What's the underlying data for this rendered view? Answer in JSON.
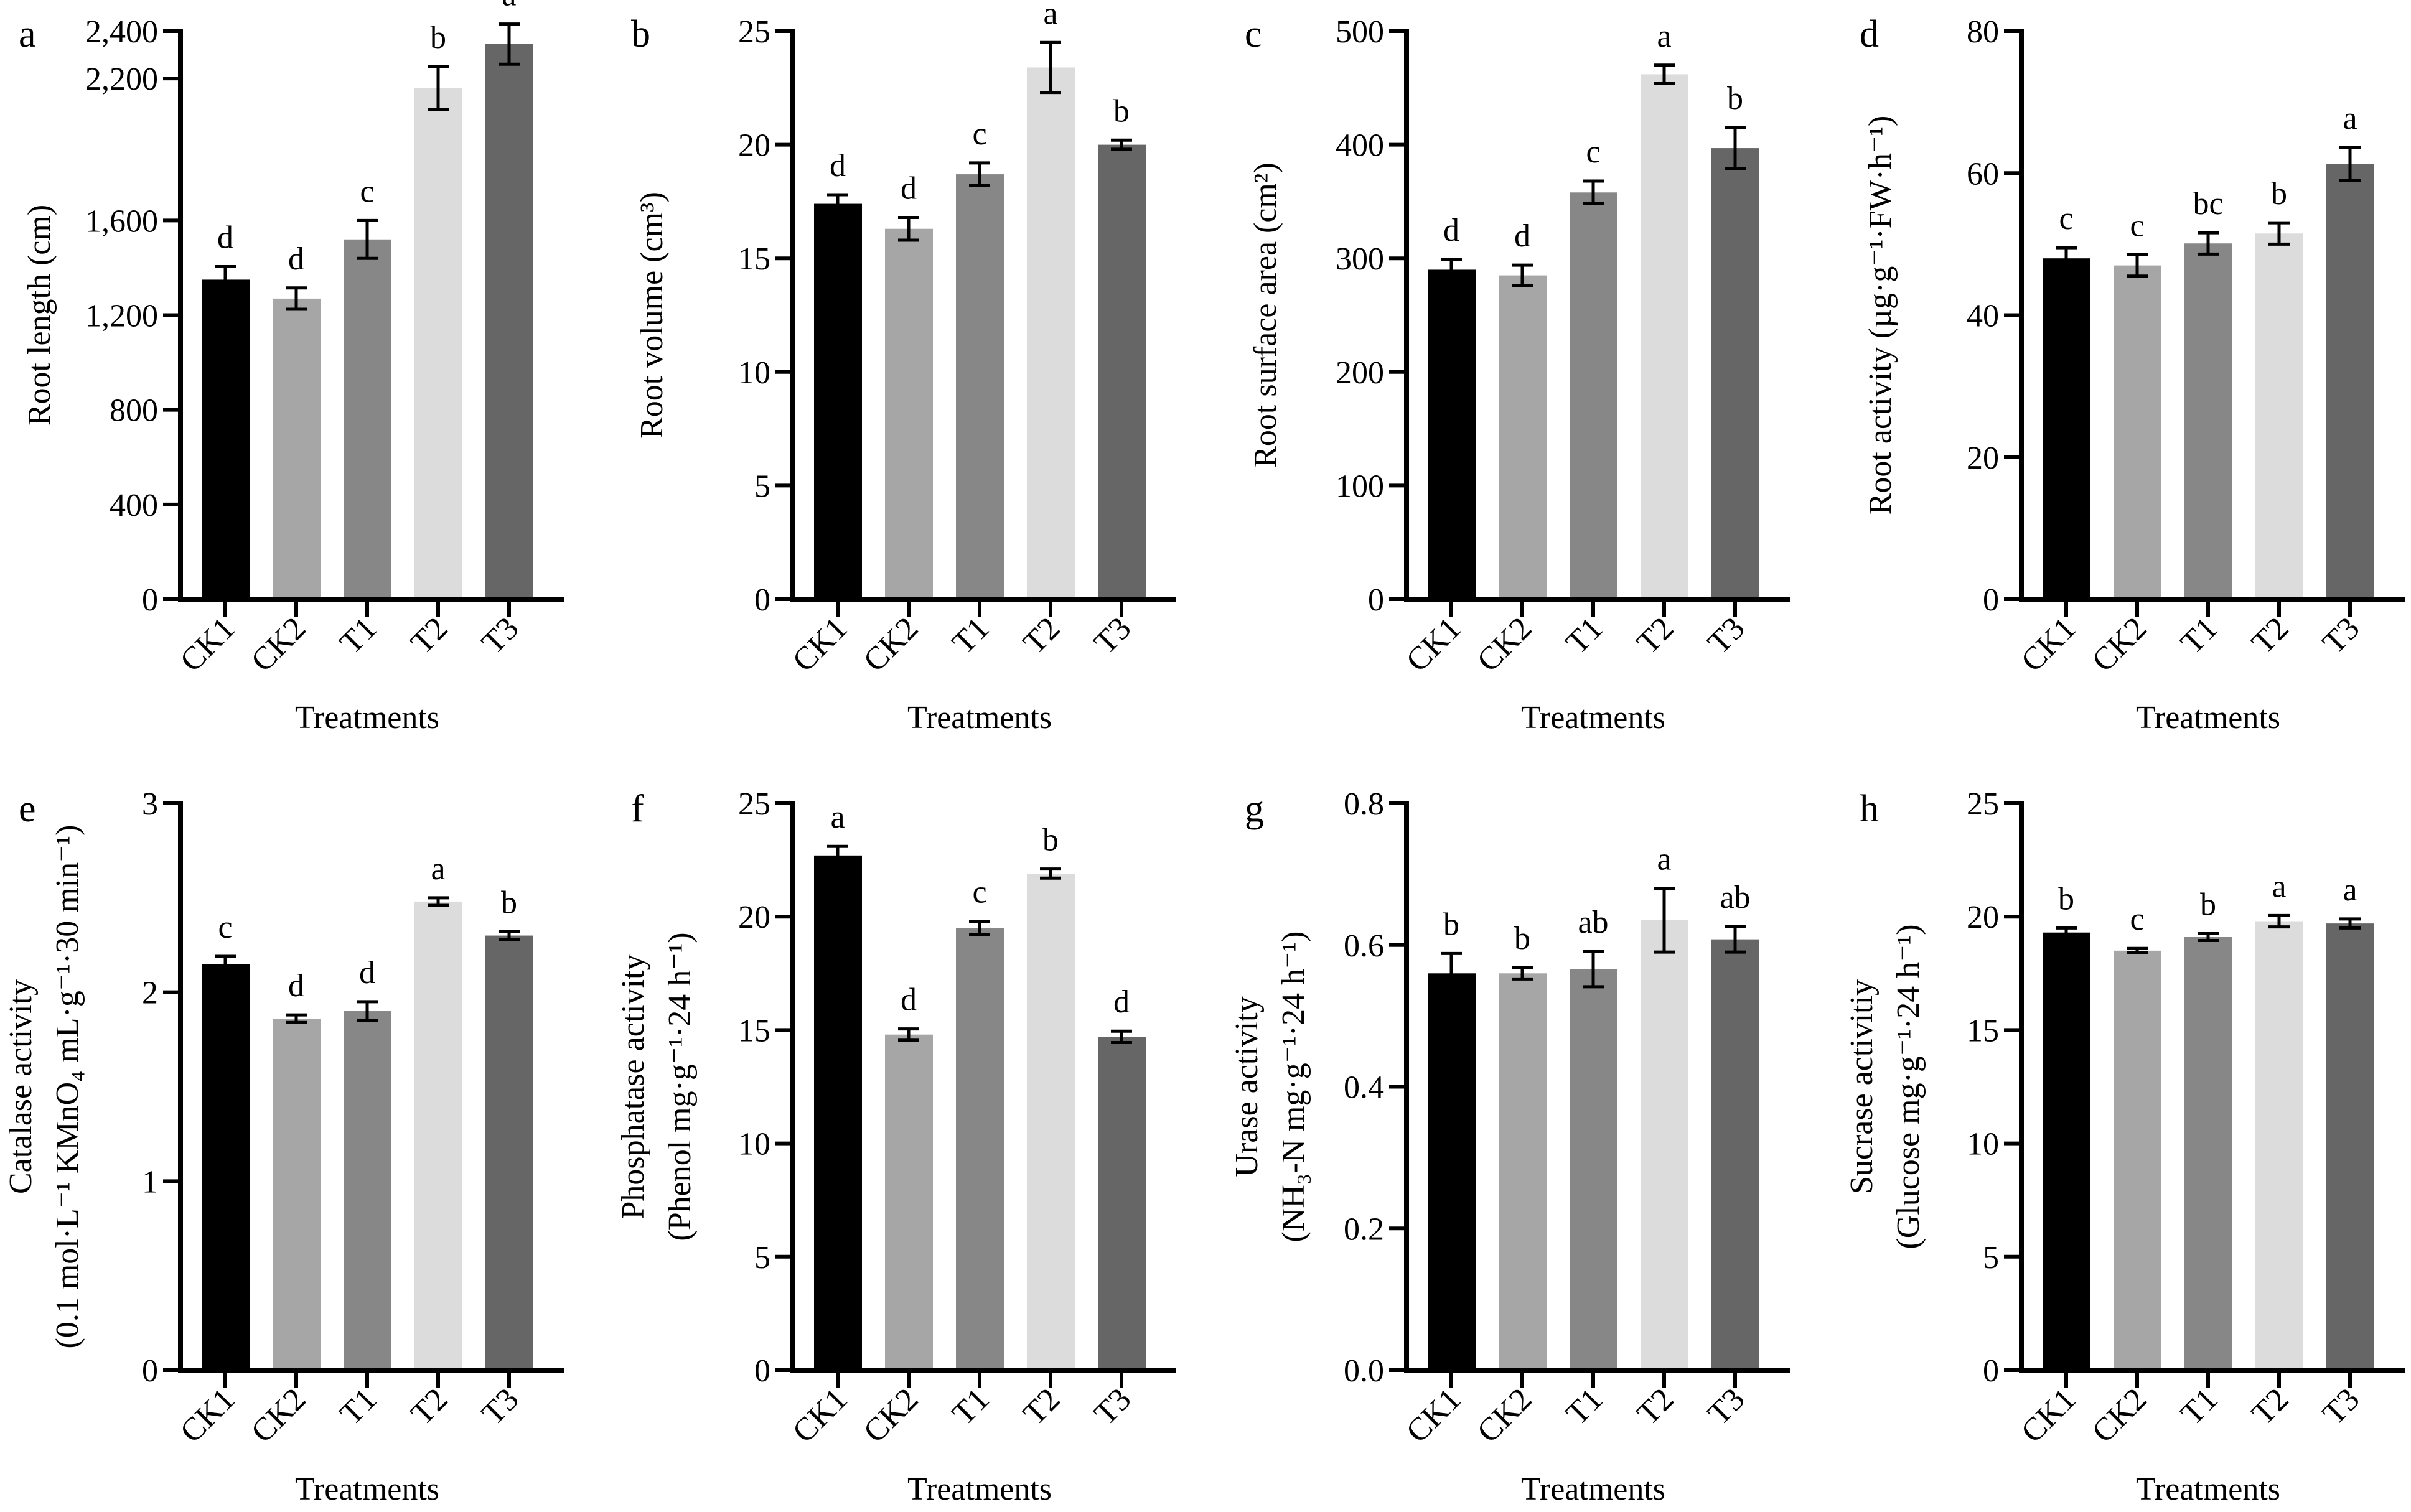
{
  "chart_data": [
    {
      "panel": "a",
      "type": "bar",
      "xlabel": "Treatments",
      "ylabel": [
        "Root length (cm)"
      ],
      "ylim": [
        0,
        2400
      ],
      "yticks": [
        0,
        400,
        800,
        1200,
        1600,
        2200,
        2400
      ],
      "ytick_labels": [
        "0",
        "400",
        "800",
        "1,200",
        "1,600",
        "2,200",
        "2,400"
      ],
      "categories": [
        "CK1",
        "CK2",
        "T1",
        "T2",
        "T3"
      ],
      "values": [
        1350,
        1270,
        1520,
        2160,
        2345
      ],
      "errors": [
        55,
        45,
        80,
        90,
        85
      ],
      "letters": [
        "d",
        "d",
        "c",
        "b",
        "a"
      ]
    },
    {
      "panel": "b",
      "type": "bar",
      "xlabel": "Treatments",
      "ylabel": [
        "Root volume (cm³)"
      ],
      "ylim": [
        0,
        25
      ],
      "yticks": [
        0,
        5,
        10,
        15,
        20,
        25
      ],
      "ytick_labels": [
        "0",
        "5",
        "10",
        "15",
        "20",
        "25"
      ],
      "categories": [
        "CK1",
        "CK2",
        "T1",
        "T2",
        "T3"
      ],
      "values": [
        17.4,
        16.3,
        18.7,
        23.4,
        20.0
      ],
      "errors": [
        0.4,
        0.5,
        0.5,
        1.1,
        0.2
      ],
      "letters": [
        "d",
        "d",
        "c",
        "a",
        "b"
      ]
    },
    {
      "panel": "c",
      "type": "bar",
      "xlabel": "Treatments",
      "ylabel": [
        "Root surface area (cm²)"
      ],
      "ylim": [
        0,
        500
      ],
      "yticks": [
        0,
        100,
        200,
        300,
        400,
        500
      ],
      "ytick_labels": [
        "0",
        "100",
        "200",
        "300",
        "400",
        "500"
      ],
      "categories": [
        "CK1",
        "CK2",
        "T1",
        "T2",
        "T3"
      ],
      "values": [
        290,
        285,
        358,
        462,
        397
      ],
      "errors": [
        9,
        9,
        10,
        8,
        18
      ],
      "letters": [
        "d",
        "d",
        "c",
        "a",
        "b"
      ]
    },
    {
      "panel": "d",
      "type": "bar",
      "xlabel": "Treatments",
      "ylabel": [
        "Root activity (µg·g⁻¹·FW·h⁻¹)"
      ],
      "ylim": [
        0,
        80
      ],
      "yticks": [
        0,
        20,
        40,
        60,
        80
      ],
      "ytick_labels": [
        "0",
        "20",
        "40",
        "60",
        "80"
      ],
      "categories": [
        "CK1",
        "CK2",
        "T1",
        "T2",
        "T3"
      ],
      "values": [
        48.0,
        47.0,
        50.1,
        51.5,
        61.3
      ],
      "errors": [
        1.5,
        1.5,
        1.5,
        1.5,
        2.3
      ],
      "letters": [
        "c",
        "c",
        "bc",
        "b",
        "a"
      ]
    },
    {
      "panel": "e",
      "type": "bar",
      "xlabel": "Treatments",
      "ylabel": [
        "Catalase activity",
        "(0.1 mol·L⁻¹ KMnO₄ mL·g⁻¹·30 min⁻¹)"
      ],
      "ylim": [
        0,
        3
      ],
      "yticks": [
        0,
        1,
        2,
        3
      ],
      "ytick_labels": [
        "0",
        "1",
        "2",
        "3"
      ],
      "categories": [
        "CK1",
        "CK2",
        "T1",
        "T2",
        "T3"
      ],
      "values": [
        2.15,
        1.86,
        1.9,
        2.48,
        2.3
      ],
      "errors": [
        0.04,
        0.02,
        0.05,
        0.02,
        0.02
      ],
      "letters": [
        "c",
        "d",
        "d",
        "a",
        "b"
      ]
    },
    {
      "panel": "f",
      "type": "bar",
      "xlabel": "Treatments",
      "ylabel": [
        "Phosphatase activity",
        "(Phenol mg·g⁻¹·24 h⁻¹)"
      ],
      "ylim": [
        0,
        25
      ],
      "yticks": [
        0,
        5,
        10,
        15,
        20,
        25
      ],
      "ytick_labels": [
        "0",
        "5",
        "10",
        "15",
        "20",
        "25"
      ],
      "categories": [
        "CK1",
        "CK2",
        "T1",
        "T2",
        "T3"
      ],
      "values": [
        22.7,
        14.8,
        19.5,
        21.9,
        14.7
      ],
      "errors": [
        0.4,
        0.25,
        0.3,
        0.2,
        0.25
      ],
      "letters": [
        "a",
        "d",
        "c",
        "b",
        "d"
      ]
    },
    {
      "panel": "g",
      "type": "bar",
      "xlabel": "Treatments",
      "ylabel": [
        "Urase activity",
        "(NH₃-N mg·g⁻¹·24 h⁻¹)"
      ],
      "ylim": [
        0,
        0.8
      ],
      "yticks": [
        0,
        0.2,
        0.4,
        0.6,
        0.8
      ],
      "ytick_labels": [
        "0.0",
        "0.2",
        "0.4",
        "0.6",
        "0.8"
      ],
      "categories": [
        "CK1",
        "CK2",
        "T1",
        "T2",
        "T3"
      ],
      "values": [
        0.56,
        0.56,
        0.566,
        0.635,
        0.608
      ],
      "errors": [
        0.028,
        0.008,
        0.025,
        0.045,
        0.018
      ],
      "letters": [
        "b",
        "b",
        "ab",
        "a",
        "ab"
      ]
    },
    {
      "panel": "h",
      "type": "bar",
      "xlabel": "Treatments",
      "ylabel": [
        "Sucrase activitiy",
        "(Glucose mg·g⁻¹·24 h⁻¹)"
      ],
      "ylim": [
        0,
        25
      ],
      "yticks": [
        0,
        5,
        10,
        15,
        20,
        25
      ],
      "ytick_labels": [
        "0",
        "5",
        "10",
        "15",
        "20",
        "25"
      ],
      "categories": [
        "CK1",
        "CK2",
        "T1",
        "T2",
        "T3"
      ],
      "values": [
        19.3,
        18.5,
        19.1,
        19.8,
        19.7
      ],
      "errors": [
        0.2,
        0.1,
        0.15,
        0.25,
        0.2
      ],
      "letters": [
        "b",
        "c",
        "b",
        "a",
        "a"
      ]
    }
  ],
  "colors": {
    "CK1": "#000000",
    "CK2": "#a6a6a6",
    "T1": "#878787",
    "T2": "#dcdcdc",
    "T3": "#666666"
  },
  "grid": false
}
